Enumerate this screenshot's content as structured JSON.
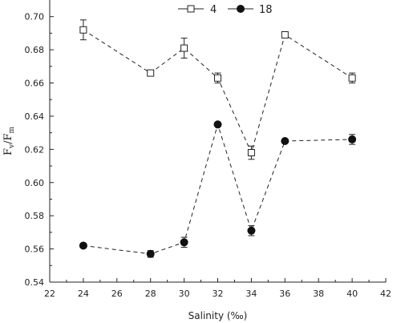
{
  "chart_data": {
    "type": "line",
    "xlabel": "Salinity (‰)",
    "ylabel_main": "F",
    "ylabel_sub1": "v",
    "ylabel_slash": "/F",
    "ylabel_sub2": "m",
    "xlim": [
      22,
      42
    ],
    "ylim": [
      0.54,
      0.71
    ],
    "xticks": [
      22,
      24,
      26,
      28,
      30,
      32,
      34,
      36,
      38,
      40,
      42
    ],
    "yticks": [
      0.54,
      0.56,
      0.58,
      0.6,
      0.62,
      0.64,
      0.66,
      0.68,
      0.7
    ],
    "x": [
      24,
      28,
      30,
      32,
      34,
      36,
      40
    ],
    "legend_position": "top-center",
    "series": [
      {
        "name": "4",
        "marker": "open-square",
        "line_style": "dashed",
        "values": [
          0.692,
          0.666,
          0.681,
          0.663,
          0.618,
          0.689,
          0.663
        ],
        "errors": [
          0.006,
          0.001,
          0.006,
          0.003,
          0.004,
          0.001,
          0.003
        ]
      },
      {
        "name": "18",
        "marker": "filled-circle",
        "line_style": "dashed",
        "values": [
          0.562,
          0.557,
          0.564,
          0.635,
          0.571,
          0.625,
          0.626
        ],
        "errors": [
          0.001,
          0.002,
          0.003,
          0.001,
          0.003,
          0.001,
          0.003
        ]
      }
    ]
  }
}
